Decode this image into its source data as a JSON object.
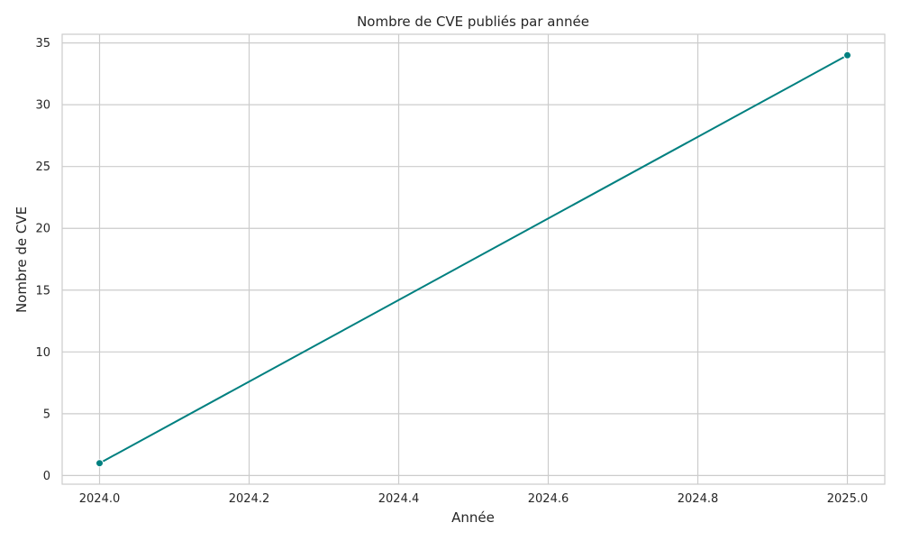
{
  "chart_data": {
    "type": "line",
    "title": "Nombre de CVE publiés par année",
    "xlabel": "Année",
    "ylabel": "Nombre de CVE",
    "xlim": [
      2023.95,
      2025.05
    ],
    "ylim": [
      -0.7,
      35.7
    ],
    "xticks": [
      "2024.0",
      "2024.2",
      "2024.4",
      "2024.6",
      "2024.8",
      "2025.0"
    ],
    "yticks": [
      "0",
      "5",
      "10",
      "15",
      "20",
      "25",
      "30",
      "35"
    ],
    "grid": true,
    "legend": "none",
    "series": [
      {
        "x": [
          2024,
          2025
        ],
        "y": [
          1,
          34
        ],
        "color": "#008080",
        "marker": "circle"
      }
    ]
  }
}
